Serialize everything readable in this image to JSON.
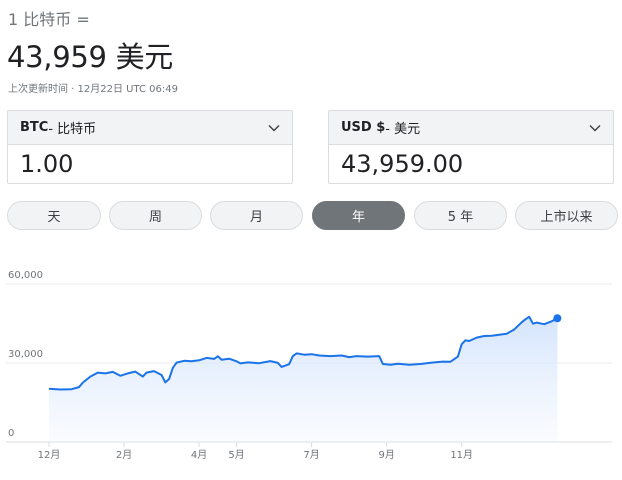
{
  "header": {
    "line": "1 比特币 =",
    "value": "43,959 美元",
    "updated": "上次更新时间 · 12月22日 UTC 06:49"
  },
  "converter": {
    "from": {
      "code": "BTC",
      "name": " - 比特币",
      "value": "1.00"
    },
    "to": {
      "code": "USD $",
      "name": " - 美元",
      "value": "43,959.00"
    }
  },
  "ranges": [
    {
      "label": "天",
      "active": false
    },
    {
      "label": "周",
      "active": false
    },
    {
      "label": "月",
      "active": false
    },
    {
      "label": "年",
      "active": true
    },
    {
      "label": "5 年",
      "active": false
    },
    {
      "label": "上市以来",
      "active": false
    }
  ],
  "colors": {
    "line": "#1a73e8",
    "line_dark": "#1967d2",
    "fill": "#e8f0fe",
    "active_pill": "#70757a"
  },
  "chart_data": {
    "type": "area",
    "title": "",
    "xlabel": "",
    "ylabel": "",
    "ylim": [
      0,
      60000
    ],
    "y_ticks": [
      "0",
      "30,000",
      "60,000"
    ],
    "y_tick_values": [
      0,
      30000,
      60000
    ],
    "x_ticks": [
      "12月",
      "2月",
      "4月",
      "5月",
      "7月",
      "9月",
      "11月"
    ],
    "x_tick_values": [
      0,
      2,
      4,
      5,
      7,
      9,
      11
    ],
    "xlim": [
      0,
      14.1
    ],
    "series": [
      {
        "values": [
          [
            0.0,
            17200
          ],
          [
            0.3,
            16900
          ],
          [
            0.6,
            17000
          ],
          [
            0.8,
            17800
          ],
          [
            0.9,
            19500
          ],
          [
            1.1,
            21800
          ],
          [
            1.3,
            23300
          ],
          [
            1.5,
            23000
          ],
          [
            1.7,
            23600
          ],
          [
            1.9,
            22100
          ],
          [
            2.1,
            23000
          ],
          [
            2.3,
            23700
          ],
          [
            2.5,
            21800
          ],
          [
            2.6,
            23300
          ],
          [
            2.8,
            23900
          ],
          [
            3.0,
            22400
          ],
          [
            3.1,
            19600
          ],
          [
            3.2,
            20900
          ],
          [
            3.3,
            25100
          ],
          [
            3.4,
            27100
          ],
          [
            3.6,
            27800
          ],
          [
            3.8,
            27600
          ],
          [
            4.0,
            28000
          ],
          [
            4.2,
            28900
          ],
          [
            4.4,
            28500
          ],
          [
            4.5,
            29500
          ],
          [
            4.6,
            28200
          ],
          [
            4.8,
            28600
          ],
          [
            5.0,
            27600
          ],
          [
            5.1,
            26800
          ],
          [
            5.3,
            27200
          ],
          [
            5.6,
            26900
          ],
          [
            5.9,
            27700
          ],
          [
            6.1,
            27000
          ],
          [
            6.2,
            25500
          ],
          [
            6.4,
            26500
          ],
          [
            6.5,
            29600
          ],
          [
            6.6,
            30600
          ],
          [
            6.8,
            30100
          ],
          [
            7.0,
            30300
          ],
          [
            7.2,
            29800
          ],
          [
            7.5,
            29600
          ],
          [
            7.8,
            29800
          ],
          [
            8.0,
            29200
          ],
          [
            8.2,
            29600
          ],
          [
            8.5,
            29400
          ],
          [
            8.8,
            29600
          ],
          [
            8.9,
            26600
          ],
          [
            9.1,
            26300
          ],
          [
            9.3,
            26700
          ],
          [
            9.6,
            26300
          ],
          [
            9.9,
            26600
          ],
          [
            10.2,
            27100
          ],
          [
            10.5,
            27500
          ],
          [
            10.7,
            27400
          ],
          [
            10.9,
            29400
          ],
          [
            11.0,
            34100
          ],
          [
            11.1,
            35600
          ],
          [
            11.2,
            35300
          ],
          [
            11.4,
            36600
          ],
          [
            11.6,
            37200
          ],
          [
            11.8,
            37300
          ],
          [
            12.0,
            37700
          ],
          [
            12.2,
            38100
          ],
          [
            12.4,
            39700
          ],
          [
            12.6,
            42400
          ],
          [
            12.7,
            43600
          ],
          [
            12.8,
            44500
          ],
          [
            12.9,
            41900
          ],
          [
            13.0,
            42300
          ],
          [
            13.2,
            41700
          ],
          [
            13.4,
            42800
          ],
          [
            13.55,
            43959
          ]
        ]
      }
    ]
  }
}
